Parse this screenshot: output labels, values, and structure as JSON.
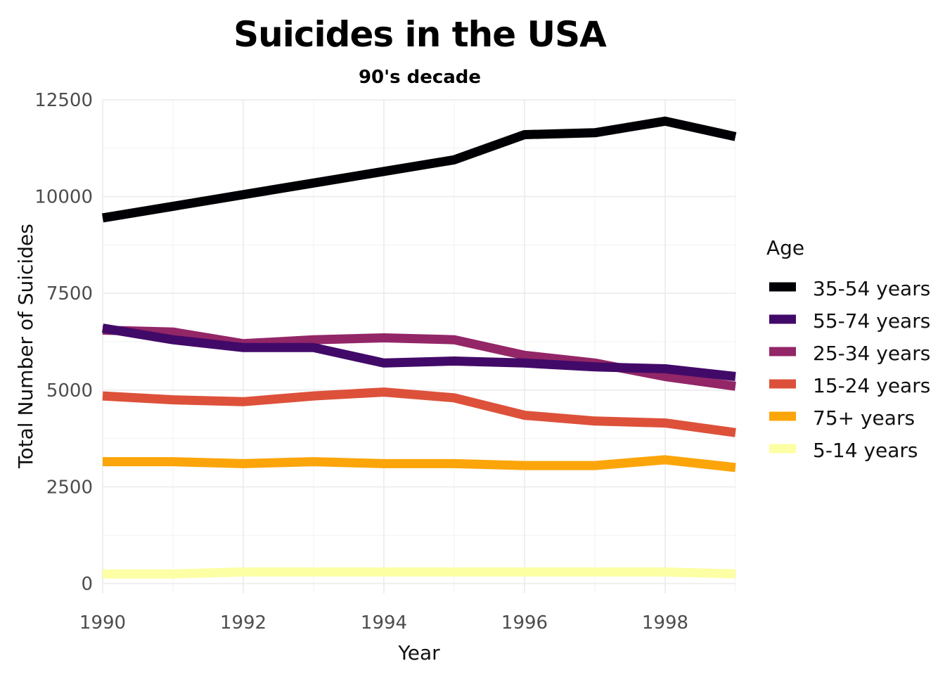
{
  "chart_data": {
    "type": "line",
    "title": "Suicides in the USA",
    "subtitle": "90's decade",
    "xlabel": "Year",
    "ylabel": "Total Number of Suicides",
    "x": [
      1990,
      1991,
      1992,
      1993,
      1994,
      1995,
      1996,
      1997,
      1998,
      1999
    ],
    "xlim": [
      1990,
      1999
    ],
    "ylim": [
      0,
      12500
    ],
    "x_ticks": [
      1990,
      1992,
      1994,
      1996,
      1998
    ],
    "y_ticks": [
      0,
      2500,
      5000,
      7500,
      10000,
      12500
    ],
    "grid": true,
    "legend_title": "Age",
    "legend_position": "right",
    "series": [
      {
        "name": "35-54 years",
        "color": "#000004",
        "values": [
          9450,
          9750,
          10050,
          10350,
          10650,
          10950,
          11600,
          11650,
          11950,
          11550
        ]
      },
      {
        "name": "55-74 years",
        "color": "#420a68",
        "values": [
          6600,
          6300,
          6100,
          6100,
          5700,
          5750,
          5700,
          5600,
          5550,
          5350
        ]
      },
      {
        "name": "25-34 years",
        "color": "#932667",
        "values": [
          6550,
          6500,
          6200,
          6300,
          6350,
          6300,
          5900,
          5700,
          5350,
          5100
        ]
      },
      {
        "name": "15-24 years",
        "color": "#dd513a",
        "values": [
          4850,
          4750,
          4700,
          4850,
          4950,
          4800,
          4350,
          4200,
          4150,
          3900
        ]
      },
      {
        "name": "75+ years",
        "color": "#fca50a",
        "values": [
          3150,
          3150,
          3100,
          3150,
          3100,
          3100,
          3050,
          3050,
          3200,
          3000
        ]
      },
      {
        "name": "5-14 years",
        "color": "#fcffa4",
        "values": [
          250,
          250,
          300,
          300,
          300,
          300,
          300,
          300,
          300,
          250
        ]
      }
    ]
  }
}
